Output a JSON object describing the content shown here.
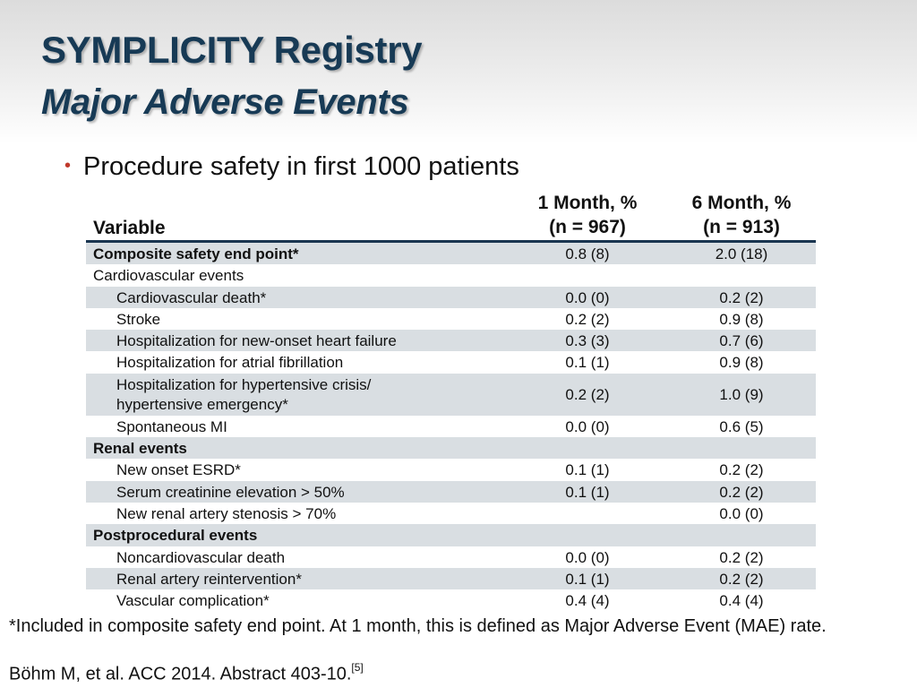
{
  "header": {
    "title": "SYMPLICITY Registry",
    "subtitle": "Major Adverse Events"
  },
  "bullet": "Procedure safety in first 1000 patients",
  "table": {
    "columns": {
      "variable": "Variable",
      "col1_line1": "1 Month, %",
      "col1_line2": "(n = 967)",
      "col2_line1": "6 Month, %",
      "col2_line2": "(n = 913)"
    },
    "rows": [
      {
        "label": "Composite safety end point*",
        "m1": "0.8 (8)",
        "m6": "2.0 (18)"
      },
      {
        "label": "Cardiovascular events",
        "m1": "",
        "m6": ""
      },
      {
        "label": "Cardiovascular death*",
        "m1": "0.0 (0)",
        "m6": "0.2 (2)"
      },
      {
        "label": "Stroke",
        "m1": "0.2 (2)",
        "m6": "0.9 (8)"
      },
      {
        "label": "Hospitalization for new-onset heart failure",
        "m1": "0.3 (3)",
        "m6": "0.7 (6)"
      },
      {
        "label": "Hospitalization for atrial fibrillation",
        "m1": "0.1 (1)",
        "m6": "0.9 (8)"
      },
      {
        "label": "Hospitalization for hypertensive crisis/",
        "label2": "hypertensive emergency*",
        "m1": "0.2 (2)",
        "m6": "1.0 (9)"
      },
      {
        "label": "Spontaneous MI",
        "m1": "0.0 (0)",
        "m6": "0.6 (5)"
      },
      {
        "label": "Renal events",
        "m1": "",
        "m6": ""
      },
      {
        "label": "New onset ESRD*",
        "m1": "0.1 (1)",
        "m6": "0.2 (2)"
      },
      {
        "label": "Serum creatinine elevation > 50%",
        "m1": "0.1 (1)",
        "m6": "0.2 (2)"
      },
      {
        "label": "New renal artery stenosis > 70%",
        "m1": "",
        "m6": "0.0 (0)"
      },
      {
        "label": "Postprocedural events",
        "m1": "",
        "m6": ""
      },
      {
        "label": "Noncardiovascular death",
        "m1": "0.0 (0)",
        "m6": "0.2 (2)"
      },
      {
        "label": "Renal artery reintervention*",
        "m1": "0.1 (1)",
        "m6": "0.2 (2)"
      },
      {
        "label": "Vascular complication*",
        "m1": "0.4 (4)",
        "m6": "0.4 (4)"
      }
    ]
  },
  "footnote": "*Included in composite safety end point. At 1 month, this is defined as Major Adverse Event (MAE) rate.",
  "citation": {
    "text": "Böhm M, et al. ACC 2014. Abstract 403-10.",
    "ref": "[5]"
  },
  "colors": {
    "title": "#173a55",
    "bullet_marker": "#c0392b",
    "row_shade": "#d9dee2",
    "header_rule": "#1a3550"
  }
}
